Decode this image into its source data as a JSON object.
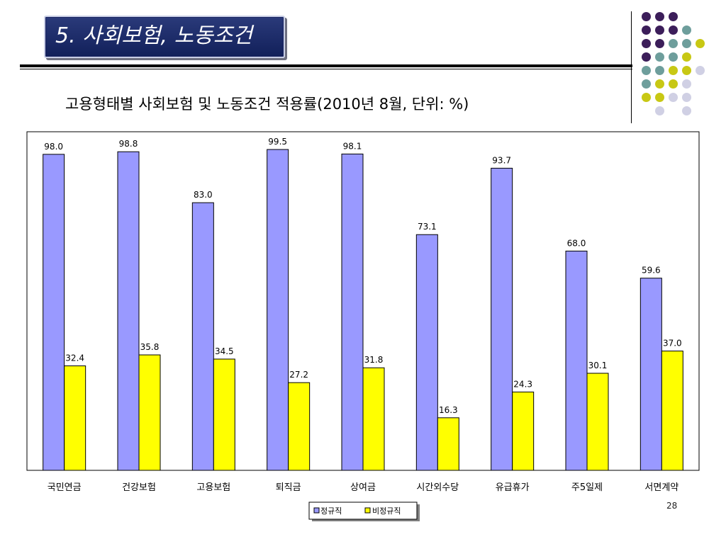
{
  "header": {
    "title": "5. 사회보험, 노동조건",
    "subtitle": "고용형태별 사회보험 및 노동조건 적용률(2010년 8월, 단위: %)"
  },
  "decor": {
    "dot_colors": {
      "purple": "#3c1e5a",
      "teal": "#6e9e9c",
      "olive": "#c8c814",
      "lavender": "#d0d0e4"
    },
    "dot_grid": [
      [
        "purple",
        "purple",
        "purple",
        null,
        null
      ],
      [
        "purple",
        "purple",
        "purple",
        "teal",
        null
      ],
      [
        "purple",
        "purple",
        "teal",
        "teal",
        "olive"
      ],
      [
        "purple",
        "teal",
        "teal",
        "olive",
        null
      ],
      [
        "teal",
        "teal",
        "olive",
        "olive",
        "lavender"
      ],
      [
        "teal",
        "olive",
        "olive",
        "lavender",
        null
      ],
      [
        "olive",
        "olive",
        "lavender",
        "lavender",
        null
      ],
      [
        null,
        "lavender",
        null,
        "lavender",
        null
      ]
    ]
  },
  "page_number": "28",
  "chart_data": {
    "type": "bar",
    "title": "",
    "xlabel": "",
    "ylabel": "",
    "ylim": [
      0,
      105
    ],
    "grid": false,
    "legend_position": "bottom",
    "categories": [
      "국민연금",
      "건강보험",
      "고용보험",
      "퇴직금",
      "상여금",
      "시간외수당",
      "유급휴가",
      "주5일제",
      "서면계약"
    ],
    "series": [
      {
        "name": "정규직",
        "color": "#9999ff",
        "values": [
          98.0,
          98.8,
          83.0,
          99.5,
          98.1,
          73.1,
          93.7,
          68.0,
          59.6
        ]
      },
      {
        "name": "비정규직",
        "color": "#ffff00",
        "values": [
          32.4,
          35.8,
          34.5,
          27.2,
          31.8,
          16.3,
          24.3,
          30.1,
          37.0
        ]
      }
    ]
  }
}
